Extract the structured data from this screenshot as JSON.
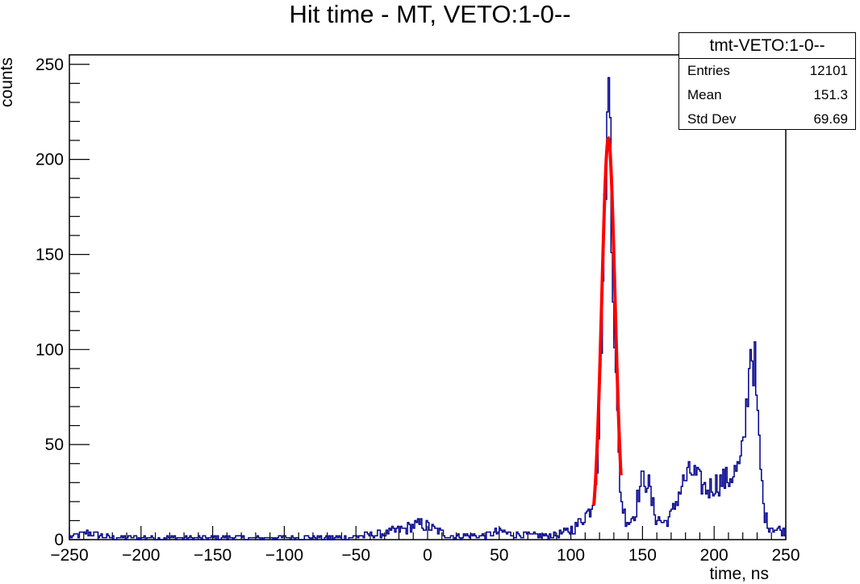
{
  "chart_data": {
    "type": "histogram",
    "title": "Hit time - MT, VETO:1-0--",
    "xlabel": "time, ns",
    "ylabel": "counts",
    "xlim": [
      -250,
      250
    ],
    "ylim": [
      0,
      255
    ],
    "x_ticks": [
      -250,
      -200,
      -150,
      -100,
      -50,
      0,
      50,
      100,
      150,
      200,
      250
    ],
    "x_tick_labels": [
      "−250",
      "−200",
      "−150",
      "−100",
      "−50",
      "0",
      "50",
      "100",
      "150",
      "200",
      "250"
    ],
    "y_ticks": [
      0,
      50,
      100,
      150,
      200,
      250
    ],
    "y_tick_labels": [
      "0",
      "50",
      "100",
      "150",
      "200",
      "250"
    ],
    "grid": false,
    "histogram_color": "#00008b",
    "fit_color": "#ff0000",
    "histogram": {
      "bin_width": 1,
      "x_start": -250,
      "profile": [
        [
          -250,
          1
        ],
        [
          -240,
          3
        ],
        [
          -235,
          4
        ],
        [
          -230,
          2
        ],
        [
          -220,
          1
        ],
        [
          -150,
          1
        ],
        [
          -100,
          1
        ],
        [
          -60,
          1
        ],
        [
          -30,
          3
        ],
        [
          -20,
          5
        ],
        [
          -5,
          8
        ],
        [
          0,
          7
        ],
        [
          5,
          5
        ],
        [
          15,
          2
        ],
        [
          40,
          2
        ],
        [
          50,
          4
        ],
        [
          60,
          3
        ],
        [
          75,
          2
        ],
        [
          90,
          2
        ],
        [
          100,
          5
        ],
        [
          105,
          8
        ],
        [
          110,
          13
        ],
        [
          113,
          15
        ],
        [
          116,
          22
        ],
        [
          119,
          45
        ],
        [
          121,
          95
        ],
        [
          123,
          150
        ],
        [
          124,
          185
        ],
        [
          125,
          205
        ],
        [
          126,
          230
        ],
        [
          127,
          210
        ],
        [
          128,
          185
        ],
        [
          129,
          150
        ],
        [
          131,
          95
        ],
        [
          133,
          50
        ],
        [
          135,
          22
        ],
        [
          138,
          12
        ],
        [
          141,
          9
        ],
        [
          145,
          15
        ],
        [
          148,
          27
        ],
        [
          151,
          33
        ],
        [
          154,
          30
        ],
        [
          157,
          18
        ],
        [
          160,
          11
        ],
        [
          165,
          9
        ],
        [
          170,
          12
        ],
        [
          175,
          24
        ],
        [
          180,
          32
        ],
        [
          185,
          36
        ],
        [
          190,
          30
        ],
        [
          195,
          26
        ],
        [
          200,
          29
        ],
        [
          205,
          31
        ],
        [
          210,
          32
        ],
        [
          215,
          36
        ],
        [
          218,
          38
        ],
        [
          221,
          52
        ],
        [
          223,
          75
        ],
        [
          225,
          92
        ],
        [
          227,
          96
        ],
        [
          229,
          82
        ],
        [
          231,
          55
        ],
        [
          233,
          32
        ],
        [
          235,
          14
        ],
        [
          238,
          7
        ],
        [
          242,
          6
        ],
        [
          246,
          5
        ],
        [
          250,
          4
        ]
      ],
      "highlights": [
        [
          126,
          243
        ],
        [
          127,
          222
        ],
        [
          225,
          100
        ],
        [
          228,
          104
        ]
      ]
    },
    "fit": {
      "type": "gaussian",
      "amplitude": 211,
      "mean": 126.2,
      "sigma": 4.6,
      "range": [
        116,
        135
      ]
    },
    "stats": {
      "title": "tmt-VETO:1-0--",
      "rows": [
        {
          "label": "Entries",
          "value": "12101"
        },
        {
          "label": "Mean",
          "value": "151.3"
        },
        {
          "label": "Std Dev",
          "value": "69.69"
        }
      ]
    }
  }
}
